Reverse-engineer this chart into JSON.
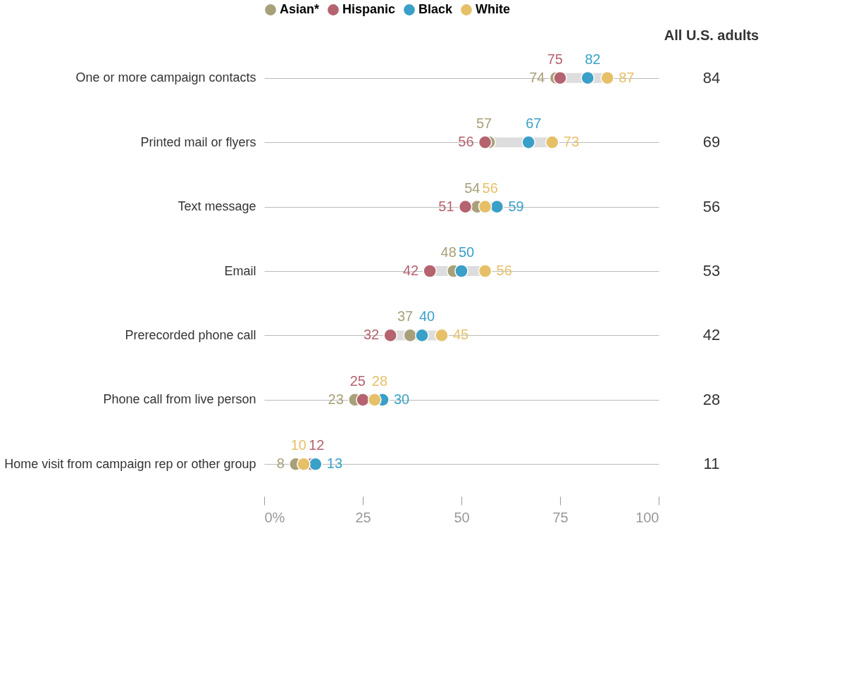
{
  "chart_data": [
    {
      "type": "scatter",
      "categories": [
        "One or more campaign contacts",
        "Printed mail or flyers",
        "Text message",
        "Email",
        "Prerecorded phone call",
        "Phone call from live person",
        "Home visit from campaign rep or other group"
      ],
      "series": [
        {
          "name": "Asian*",
          "color": "#a8a07a",
          "values": [
            74,
            57,
            54,
            48,
            37,
            23,
            8
          ]
        },
        {
          "name": "Hispanic",
          "color": "#b5636f",
          "values": [
            75,
            56,
            51,
            42,
            32,
            25,
            12
          ]
        },
        {
          "name": "Black",
          "color": "#3aa0c8",
          "values": [
            82,
            67,
            59,
            50,
            40,
            30,
            13
          ]
        },
        {
          "name": "White",
          "color": "#e6c068",
          "values": [
            87,
            73,
            56,
            56,
            45,
            28,
            10
          ]
        }
      ],
      "xlim": [
        0,
        100
      ],
      "xticks": [
        {
          "value": 0,
          "label": "0%"
        },
        25,
        50,
        75,
        100
      ],
      "orientation": "horizontal",
      "grid": "y",
      "legend": "top",
      "marker": "circle",
      "data_labels": true
    },
    {
      "type": "other",
      "title": "All U.S. adults",
      "data_labels": true,
      "values": [
        84,
        69,
        56,
        53,
        42,
        28,
        11
      ]
    }
  ]
}
